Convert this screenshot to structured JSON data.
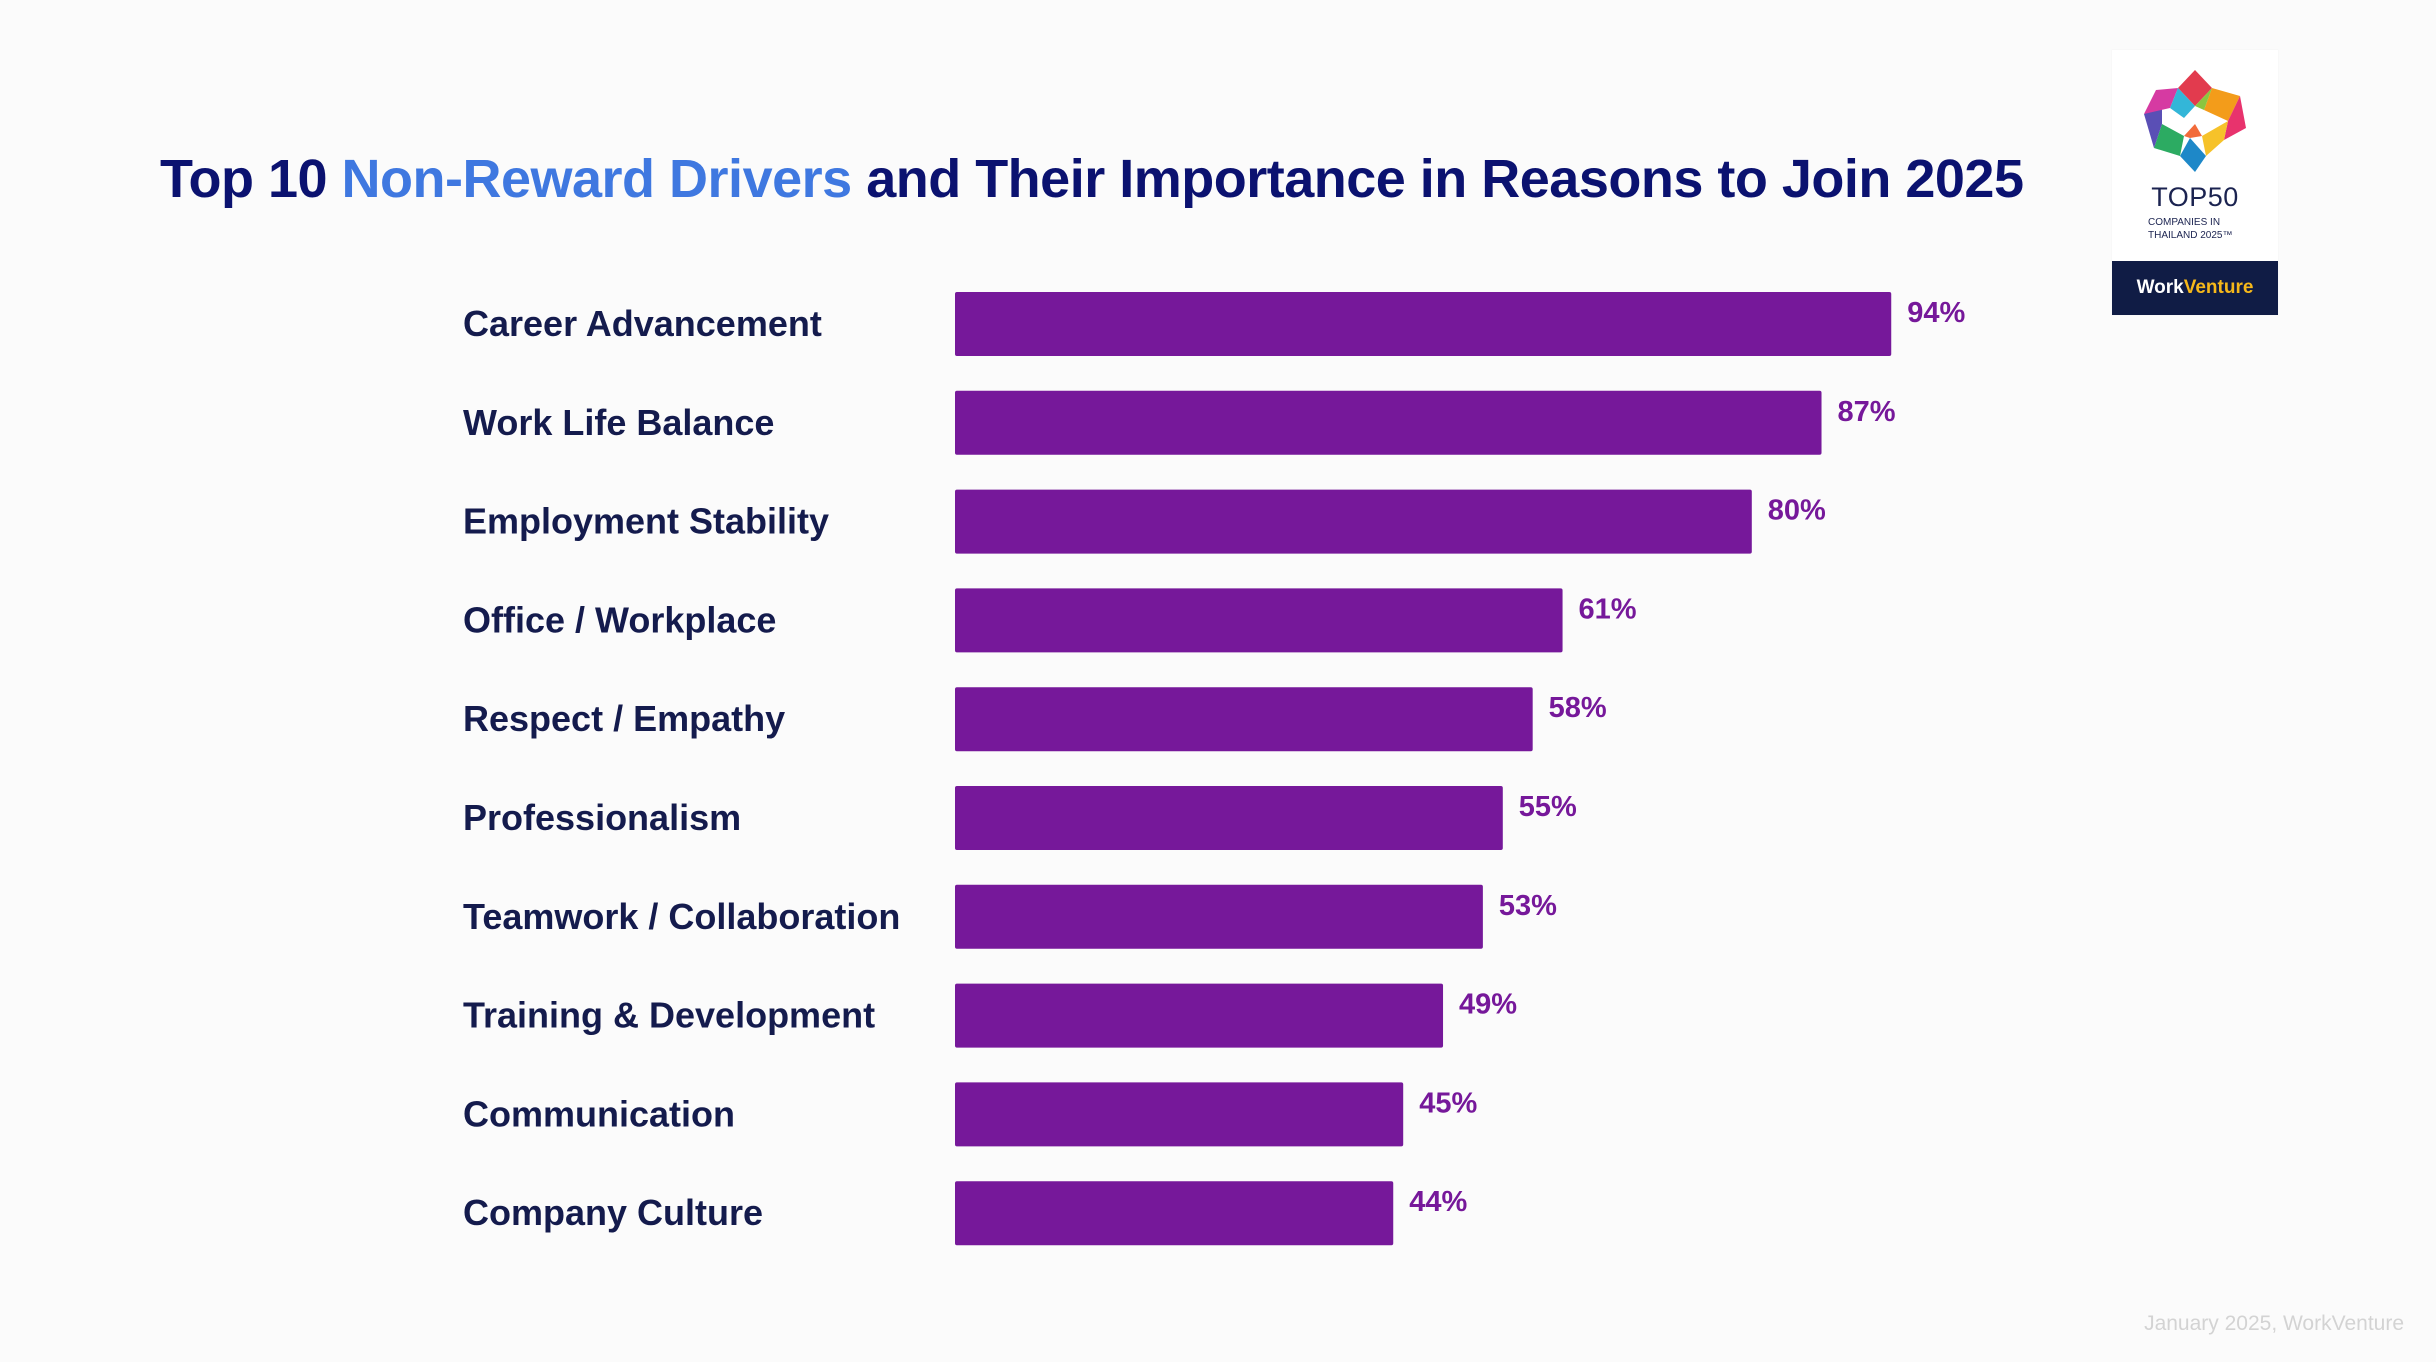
{
  "title": {
    "part1": "Top 10 ",
    "highlight": "Non-Reward Drivers",
    "part2": " and Their Importance in Reasons to Join 2025"
  },
  "colors": {
    "bar": "#76189a",
    "title": "#0b1270",
    "highlight": "#3f78e0",
    "label": "#141b4d"
  },
  "chart_data": {
    "type": "bar",
    "orientation": "horizontal",
    "categories": [
      "Career Advancement",
      "Work Life Balance",
      "Employment Stability",
      "Office / Workplace",
      "Respect / Empathy",
      "Professionalism",
      "Teamwork / Collaboration",
      "Training & Development",
      "Communication",
      "Company Culture"
    ],
    "values": [
      94,
      87,
      80,
      61,
      58,
      55,
      53,
      49,
      45,
      44
    ],
    "value_labels": [
      "94%",
      "87%",
      "80%",
      "61%",
      "58%",
      "55%",
      "53%",
      "49%",
      "45%",
      "44%"
    ],
    "xlim": [
      0,
      100
    ],
    "grid": false,
    "legend": "none"
  },
  "badge": {
    "top": "TOP50",
    "sub1": "COMPANIES IN",
    "sub2": "THAILAND 2025™",
    "brand1": "Work",
    "brand2": "Venture"
  },
  "source": "January 2025, WorkVenture"
}
